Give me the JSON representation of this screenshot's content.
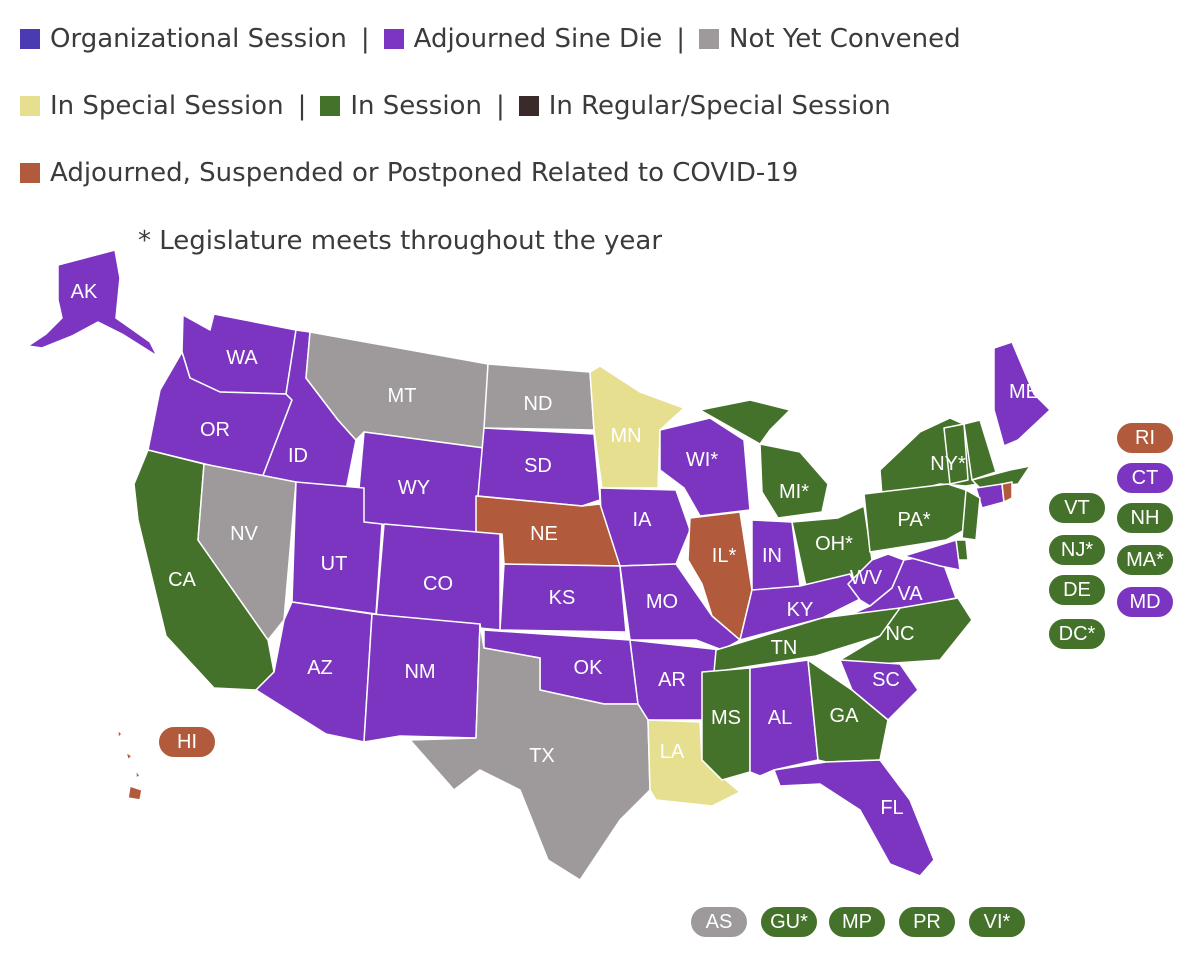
{
  "colors": {
    "organizational": "#4b3bb3",
    "adjourned": "#7b35c1",
    "not_convened": "#9e9a9b",
    "special": "#e6df8f",
    "in_session": "#45722b",
    "regular_special": "#3a2a2a",
    "covid": "#b15a3c"
  },
  "legend": {
    "organizational": "Organizational Session",
    "adjourned": "Adjourned Sine Die",
    "not_convened": "Not Yet Convened",
    "special": "In Special Session",
    "in_session": "In Session",
    "regular_special": "In Regular/Special Session",
    "covid": "Adjourned, Suspended or Postponed Related to COVID-19",
    "separator": "|"
  },
  "note": "* Legislature meets throughout the year",
  "states": [
    {
      "label": "AK",
      "status": "adjourned"
    },
    {
      "label": "WA",
      "status": "adjourned"
    },
    {
      "label": "OR",
      "status": "adjourned"
    },
    {
      "label": "ID",
      "status": "adjourned"
    },
    {
      "label": "MT",
      "status": "not_convened"
    },
    {
      "label": "ND",
      "status": "not_convened"
    },
    {
      "label": "MN",
      "status": "special"
    },
    {
      "label": "WI*",
      "status": "adjourned"
    },
    {
      "label": "MI*",
      "status": "in_session"
    },
    {
      "label": "NY*",
      "status": "in_session"
    },
    {
      "label": "ME",
      "status": "adjourned"
    },
    {
      "label": "CA",
      "status": "in_session"
    },
    {
      "label": "NV",
      "status": "not_convened"
    },
    {
      "label": "WY",
      "status": "adjourned"
    },
    {
      "label": "SD",
      "status": "adjourned"
    },
    {
      "label": "IA",
      "status": "adjourned"
    },
    {
      "label": "NE",
      "status": "covid"
    },
    {
      "label": "IL*",
      "status": "covid"
    },
    {
      "label": "IN",
      "status": "adjourned"
    },
    {
      "label": "OH*",
      "status": "in_session"
    },
    {
      "label": "PA*",
      "status": "in_session"
    },
    {
      "label": "UT",
      "status": "adjourned"
    },
    {
      "label": "CO",
      "status": "adjourned"
    },
    {
      "label": "KS",
      "status": "adjourned"
    },
    {
      "label": "MO",
      "status": "adjourned"
    },
    {
      "label": "KY",
      "status": "adjourned"
    },
    {
      "label": "WV",
      "status": "adjourned"
    },
    {
      "label": "VA",
      "status": "adjourned"
    },
    {
      "label": "AZ",
      "status": "adjourned"
    },
    {
      "label": "NM",
      "status": "adjourned"
    },
    {
      "label": "OK",
      "status": "adjourned"
    },
    {
      "label": "AR",
      "status": "adjourned"
    },
    {
      "label": "TN",
      "status": "in_session"
    },
    {
      "label": "NC",
      "status": "in_session"
    },
    {
      "label": "SC",
      "status": "adjourned"
    },
    {
      "label": "TX",
      "status": "not_convened"
    },
    {
      "label": "LA",
      "status": "special"
    },
    {
      "label": "MS",
      "status": "in_session"
    },
    {
      "label": "AL",
      "status": "adjourned"
    },
    {
      "label": "GA",
      "status": "in_session"
    },
    {
      "label": "FL",
      "status": "adjourned"
    },
    {
      "label": "VT",
      "status": "in_session"
    },
    {
      "label": "NH",
      "status": "in_session"
    },
    {
      "label": "MA",
      "status": "in_session"
    },
    {
      "label": "CT",
      "status": "adjourned"
    },
    {
      "label": "RI",
      "status": "covid"
    },
    {
      "label": "NJ",
      "status": "in_session"
    },
    {
      "label": "DE",
      "status": "in_session"
    },
    {
      "label": "MD",
      "status": "adjourned"
    },
    {
      "label": "HI",
      "status": "covid"
    }
  ],
  "side_pills": [
    {
      "label": "RI",
      "status": "covid"
    },
    {
      "label": "CT",
      "status": "adjourned"
    },
    {
      "label": "VT",
      "status": "in_session"
    },
    {
      "label": "NH",
      "status": "in_session"
    },
    {
      "label": "NJ*",
      "status": "in_session"
    },
    {
      "label": "MA*",
      "status": "in_session"
    },
    {
      "label": "DE",
      "status": "in_session"
    },
    {
      "label": "MD",
      "status": "adjourned"
    },
    {
      "label": "DC*",
      "status": "in_session"
    }
  ],
  "hi_pill": {
    "label": "HI",
    "status": "covid"
  },
  "territories": [
    {
      "label": "AS",
      "status": "not_convened"
    },
    {
      "label": "GU*",
      "status": "in_session"
    },
    {
      "label": "MP",
      "status": "in_session"
    },
    {
      "label": "PR",
      "status": "in_session"
    },
    {
      "label": "VI*",
      "status": "in_session"
    }
  ]
}
